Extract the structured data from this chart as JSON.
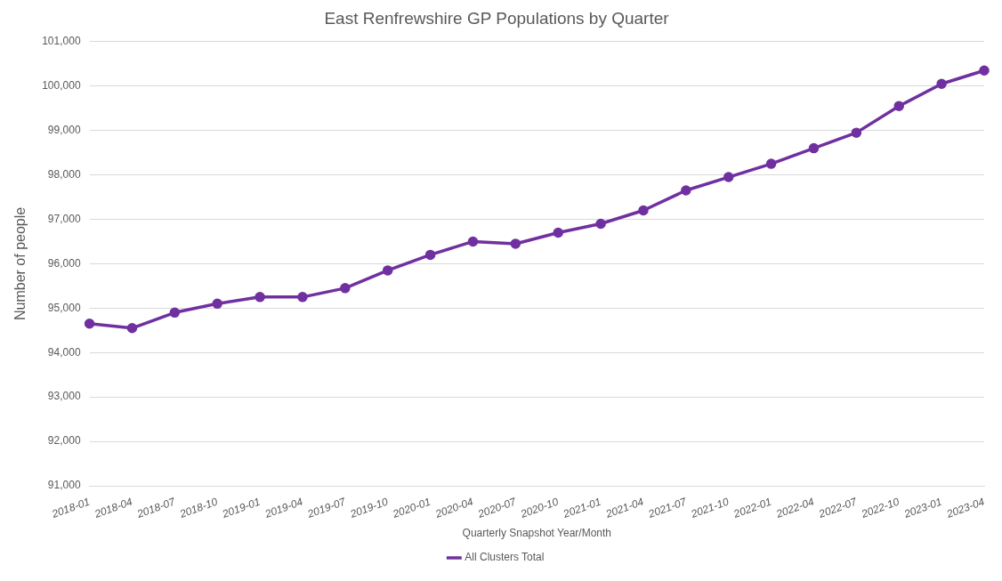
{
  "chart_data": {
    "type": "line",
    "title": "East Renfrewshire GP Populations by Quarter",
    "xlabel": "Quarterly Snapshot Year/Month",
    "ylabel": "Number of people",
    "categories": [
      "2018-01",
      "2018-04",
      "2018-07",
      "2018-10",
      "2019-01",
      "2019-04",
      "2019-07",
      "2019-10",
      "2020-01",
      "2020-04",
      "2020-07",
      "2020-10",
      "2021-01",
      "2021-04",
      "2021-07",
      "2021-10",
      "2022-01",
      "2022-04",
      "2022-07",
      "2022-10",
      "2023-01",
      "2023-04"
    ],
    "series": [
      {
        "name": "All Clusters Total",
        "color": "#7030a0",
        "values": [
          94650,
          94550,
          94900,
          95100,
          95250,
          95250,
          95450,
          95850,
          96200,
          96500,
          96450,
          96700,
          96900,
          97200,
          97650,
          97950,
          98250,
          98600,
          98950,
          99550,
          100050,
          100350
        ]
      }
    ],
    "ylim": [
      91000,
      101000
    ],
    "yticks": [
      {
        "value": 91000,
        "label": "91,000"
      },
      {
        "value": 92000,
        "label": "92,000"
      },
      {
        "value": 93000,
        "label": "93,000"
      },
      {
        "value": 94000,
        "label": "94,000"
      },
      {
        "value": 95000,
        "label": "95,000"
      },
      {
        "value": 96000,
        "label": "96,000"
      },
      {
        "value": 97000,
        "label": "97,000"
      },
      {
        "value": 98000,
        "label": "98,000"
      },
      {
        "value": 99000,
        "label": "99,000"
      },
      {
        "value": 100000,
        "label": "100,000"
      },
      {
        "value": 101000,
        "label": "101,000"
      }
    ],
    "grid": "y",
    "legend": "bottom",
    "marker": "circle",
    "line_style": "solid"
  }
}
